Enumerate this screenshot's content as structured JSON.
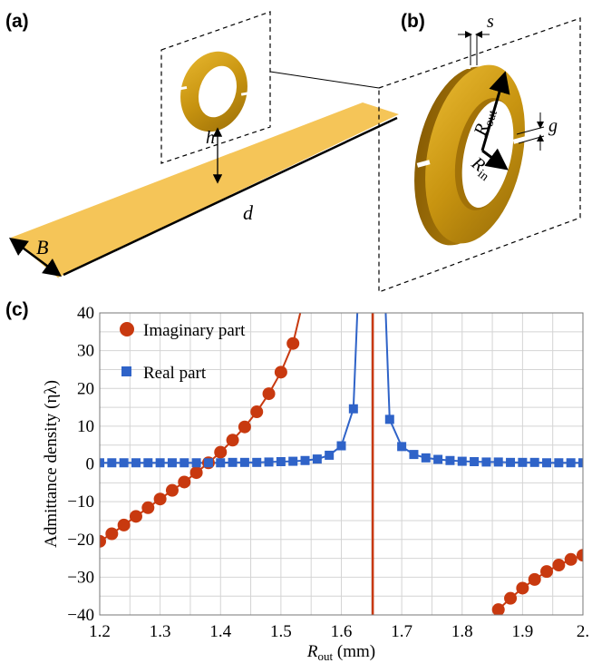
{
  "panels": {
    "a": {
      "label": "(a)",
      "symbols": {
        "h": "h",
        "d": "d",
        "B": "B"
      }
    },
    "b": {
      "label": "(b)",
      "symbols": {
        "s": "s",
        "g": "g",
        "rout_main": "R",
        "rout_sub": "out",
        "rin_main": "R",
        "rin_sub": "in"
      }
    },
    "c": {
      "label": "(c)"
    }
  },
  "chart_data": {
    "type": "line",
    "ylabel": "Admittance  density (ηλ)",
    "xlabel_main": "R",
    "xlabel_sub": "out",
    "xlabel_unit": " (mm)",
    "xlim": [
      1.2,
      2.0
    ],
    "ylim": [
      -40,
      40
    ],
    "xticks": [
      "1.2",
      "1.3",
      "1.4",
      "1.5",
      "1.6",
      "1.7",
      "1.8",
      "1.9",
      "2."
    ],
    "yticks": [
      "40",
      "30",
      "20",
      "10",
      "0",
      "−10",
      "−20",
      "−30",
      "−40"
    ],
    "grid": true,
    "legend_position": "top-left",
    "resonance_x": 1.652,
    "colors": {
      "imaginary": "#c8390f",
      "real": "#2f63c8"
    },
    "series": [
      {
        "name": "Imaginary part",
        "marker": "circle",
        "x": [
          1.2,
          1.22,
          1.24,
          1.26,
          1.28,
          1.3,
          1.32,
          1.34,
          1.36,
          1.38,
          1.4,
          1.42,
          1.44,
          1.46,
          1.48,
          1.5,
          1.52,
          1.86,
          1.88,
          1.9,
          1.92,
          1.94,
          1.96,
          1.98,
          2.0
        ],
        "values": [
          -20.5,
          -18.5,
          -16.2,
          -13.9,
          -11.6,
          -9.3,
          -7.0,
          -4.8,
          -2.3,
          0.3,
          3.1,
          6.3,
          9.8,
          13.8,
          18.6,
          24.3,
          31.9,
          -38.6,
          -35.6,
          -32.9,
          -30.6,
          -28.5,
          -26.8,
          -25.3,
          -24.2
        ]
      },
      {
        "name": "Real part",
        "marker": "square",
        "x": [
          1.2,
          1.22,
          1.24,
          1.26,
          1.28,
          1.3,
          1.32,
          1.34,
          1.36,
          1.38,
          1.4,
          1.42,
          1.44,
          1.46,
          1.48,
          1.5,
          1.52,
          1.54,
          1.56,
          1.58,
          1.6,
          1.62,
          1.68,
          1.7,
          1.72,
          1.74,
          1.76,
          1.78,
          1.8,
          1.82,
          1.84,
          1.86,
          1.88,
          1.9,
          1.92,
          1.94,
          1.96,
          1.98,
          2.0
        ],
        "values": [
          0.3,
          0.3,
          0.3,
          0.3,
          0.3,
          0.3,
          0.3,
          0.3,
          0.3,
          0.3,
          0.3,
          0.4,
          0.4,
          0.4,
          0.5,
          0.6,
          0.7,
          0.9,
          1.3,
          2.3,
          4.8,
          14.6,
          11.8,
          4.6,
          2.5,
          1.6,
          1.2,
          0.9,
          0.7,
          0.6,
          0.5,
          0.5,
          0.4,
          0.4,
          0.4,
          0.3,
          0.3,
          0.3,
          0.3
        ]
      }
    ]
  }
}
